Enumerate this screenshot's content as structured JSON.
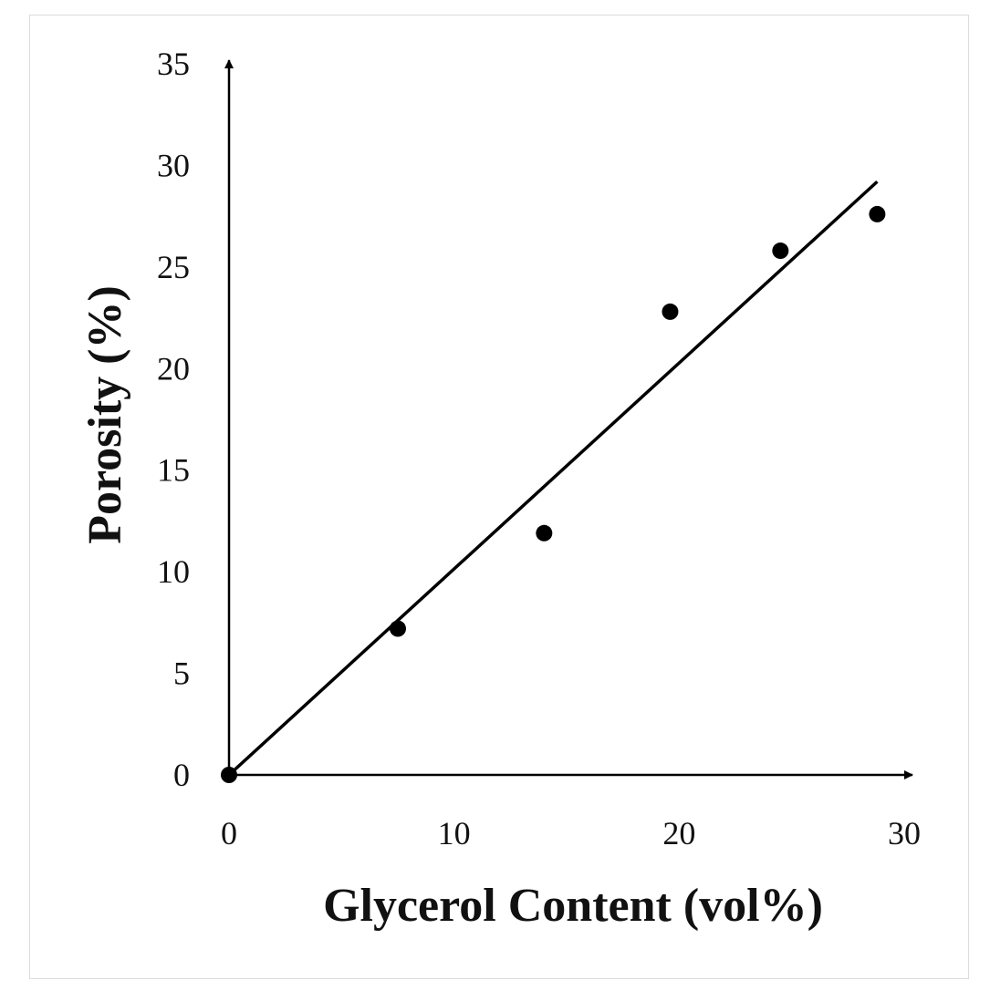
{
  "chart_data": {
    "type": "scatter",
    "title": "",
    "xlabel": "Glycerol Content (vol%)",
    "ylabel": "Porosity (%)",
    "xlim": [
      0,
      30
    ],
    "ylim": [
      0,
      35
    ],
    "x_ticks": [
      0,
      10,
      20,
      30
    ],
    "y_ticks": [
      0,
      5,
      10,
      15,
      20,
      25,
      30,
      35
    ],
    "grid": false,
    "legend": "none",
    "series": [
      {
        "points": [
          {
            "x": 0,
            "y": 0
          },
          {
            "x": 7.5,
            "y": 7.2
          },
          {
            "x": 14.0,
            "y": 11.9
          },
          {
            "x": 19.6,
            "y": 22.8
          },
          {
            "x": 24.5,
            "y": 25.8
          },
          {
            "x": 28.8,
            "y": 27.6
          }
        ]
      }
    ],
    "trendline": {
      "type": "linear",
      "x_range": [
        0,
        28.8
      ],
      "y_range": [
        0,
        29.2
      ]
    },
    "colors": {
      "marker": "#000000",
      "line": "#000000",
      "axis": "#000000"
    }
  }
}
